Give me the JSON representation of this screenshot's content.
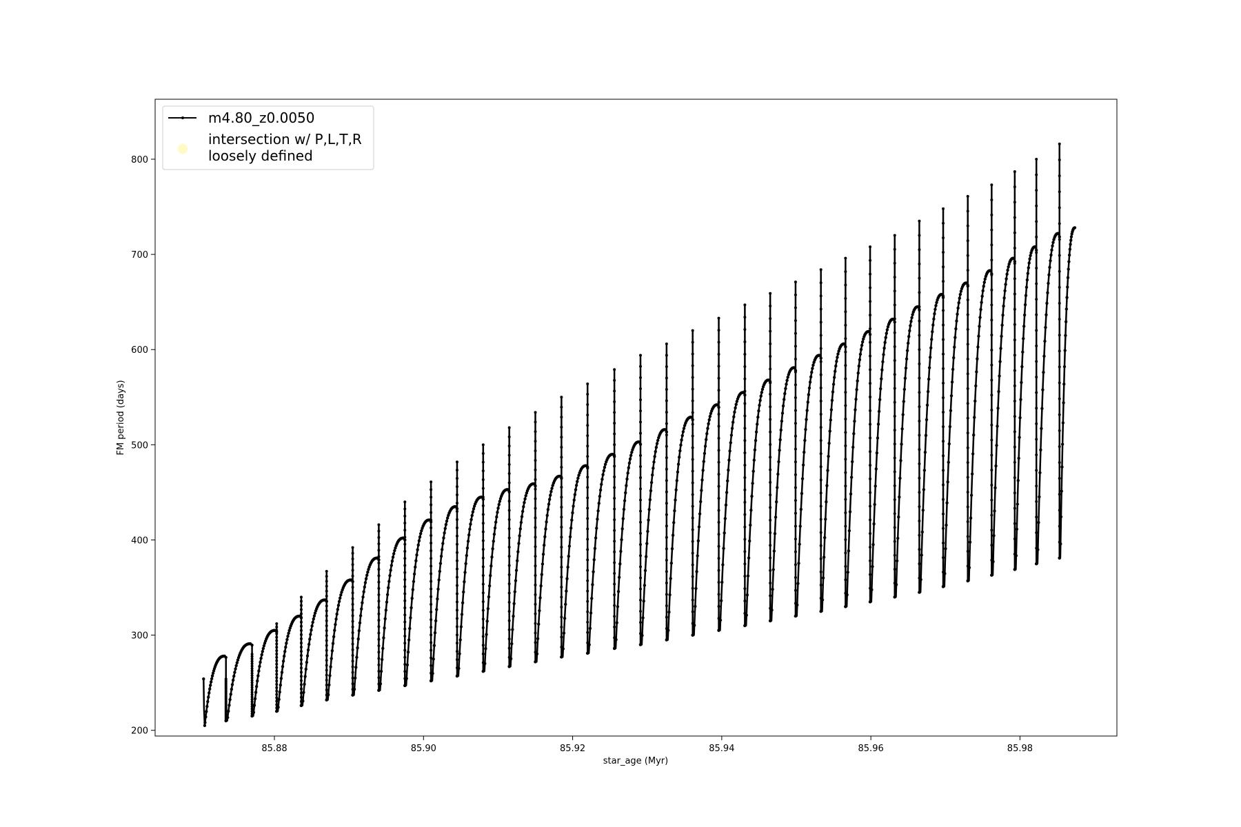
{
  "chart_data": {
    "type": "line",
    "title": "",
    "xlabel": "star_age (Myr)",
    "ylabel": "FM period (days)",
    "xlim": [
      85.864,
      85.993
    ],
    "ylim": [
      194,
      863
    ],
    "grid": false,
    "legend_position": "upper-left",
    "x_ticks": [
      85.88,
      85.9,
      85.92,
      85.94,
      85.96,
      85.98
    ],
    "x_tick_labels": [
      "85.88",
      "85.90",
      "85.92",
      "85.94",
      "85.96",
      "85.98"
    ],
    "y_ticks": [
      200,
      300,
      400,
      500,
      600,
      700,
      800
    ],
    "y_tick_labels": [
      "200",
      "300",
      "400",
      "500",
      "600",
      "700",
      "800"
    ],
    "series": [
      {
        "name": "m4.80_z0.0050",
        "color": "#000000",
        "marker": "dot",
        "pulse_cycles": [
          {
            "start": 85.8705,
            "end": 85.8735,
            "min": 205,
            "max": 278,
            "spike": 254
          },
          {
            "start": 85.8735,
            "end": 85.877,
            "min": 210,
            "max": 291,
            "spike": 280
          },
          {
            "start": 85.877,
            "end": 85.8803,
            "min": 215,
            "max": 305,
            "spike": 312
          },
          {
            "start": 85.8803,
            "end": 85.8836,
            "min": 220,
            "max": 320,
            "spike": 340
          },
          {
            "start": 85.8836,
            "end": 85.887,
            "min": 226,
            "max": 337,
            "spike": 367
          },
          {
            "start": 85.887,
            "end": 85.8905,
            "min": 232,
            "max": 358,
            "spike": 392
          },
          {
            "start": 85.8905,
            "end": 85.894,
            "min": 237,
            "max": 381,
            "spike": 416
          },
          {
            "start": 85.894,
            "end": 85.8975,
            "min": 242,
            "max": 402,
            "spike": 440
          },
          {
            "start": 85.8975,
            "end": 85.901,
            "min": 247,
            "max": 421,
            "spike": 461
          },
          {
            "start": 85.901,
            "end": 85.9045,
            "min": 252,
            "max": 435,
            "spike": 482
          },
          {
            "start": 85.9045,
            "end": 85.908,
            "min": 257,
            "max": 445,
            "spike": 500
          },
          {
            "start": 85.908,
            "end": 85.9115,
            "min": 262,
            "max": 453,
            "spike": 518
          },
          {
            "start": 85.9115,
            "end": 85.915,
            "min": 267,
            "max": 459,
            "spike": 534
          },
          {
            "start": 85.915,
            "end": 85.9185,
            "min": 272,
            "max": 467,
            "spike": 550
          },
          {
            "start": 85.9185,
            "end": 85.922,
            "min": 277,
            "max": 478,
            "spike": 564
          },
          {
            "start": 85.922,
            "end": 85.9256,
            "min": 281,
            "max": 490,
            "spike": 579
          },
          {
            "start": 85.9256,
            "end": 85.9291,
            "min": 286,
            "max": 503,
            "spike": 594
          },
          {
            "start": 85.9291,
            "end": 85.9326,
            "min": 290,
            "max": 516,
            "spike": 606
          },
          {
            "start": 85.9326,
            "end": 85.9361,
            "min": 295,
            "max": 529,
            "spike": 620
          },
          {
            "start": 85.9361,
            "end": 85.9396,
            "min": 300,
            "max": 542,
            "spike": 633
          },
          {
            "start": 85.9396,
            "end": 85.9431,
            "min": 305,
            "max": 555,
            "spike": 647
          },
          {
            "start": 85.9431,
            "end": 85.9465,
            "min": 310,
            "max": 568,
            "spike": 659
          },
          {
            "start": 85.9465,
            "end": 85.9499,
            "min": 315,
            "max": 581,
            "spike": 671
          },
          {
            "start": 85.9499,
            "end": 85.9533,
            "min": 320,
            "max": 594,
            "spike": 684
          },
          {
            "start": 85.9533,
            "end": 85.9566,
            "min": 325,
            "max": 606,
            "spike": 696
          },
          {
            "start": 85.9566,
            "end": 85.9599,
            "min": 330,
            "max": 619,
            "spike": 708
          },
          {
            "start": 85.9599,
            "end": 85.9632,
            "min": 335,
            "max": 632,
            "spike": 720
          },
          {
            "start": 85.9632,
            "end": 85.9665,
            "min": 340,
            "max": 645,
            "spike": 735
          },
          {
            "start": 85.9665,
            "end": 85.9697,
            "min": 345,
            "max": 658,
            "spike": 748
          },
          {
            "start": 85.9697,
            "end": 85.973,
            "min": 351,
            "max": 670,
            "spike": 761
          },
          {
            "start": 85.973,
            "end": 85.9762,
            "min": 357,
            "max": 683,
            "spike": 773
          },
          {
            "start": 85.9762,
            "end": 85.9793,
            "min": 363,
            "max": 696,
            "spike": 787
          },
          {
            "start": 85.9793,
            "end": 85.9822,
            "min": 369,
            "max": 708,
            "spike": 800
          },
          {
            "start": 85.9822,
            "end": 85.9853,
            "min": 375,
            "max": 722,
            "spike": 816
          },
          {
            "start": 85.9853,
            "end": 85.9875,
            "min": 381,
            "max": 728,
            "spike": null
          }
        ]
      },
      {
        "name": "intersection w/ P,L,T,R\nloosely defined",
        "color": "#fffac8",
        "marker": "circle",
        "points": []
      }
    ]
  },
  "legend": {
    "entries": [
      {
        "label_line1": "m4.80_z0.0050",
        "label_line2": ""
      },
      {
        "label_line1": "intersection w/ P,L,T,R",
        "label_line2": "loosely defined"
      }
    ]
  }
}
